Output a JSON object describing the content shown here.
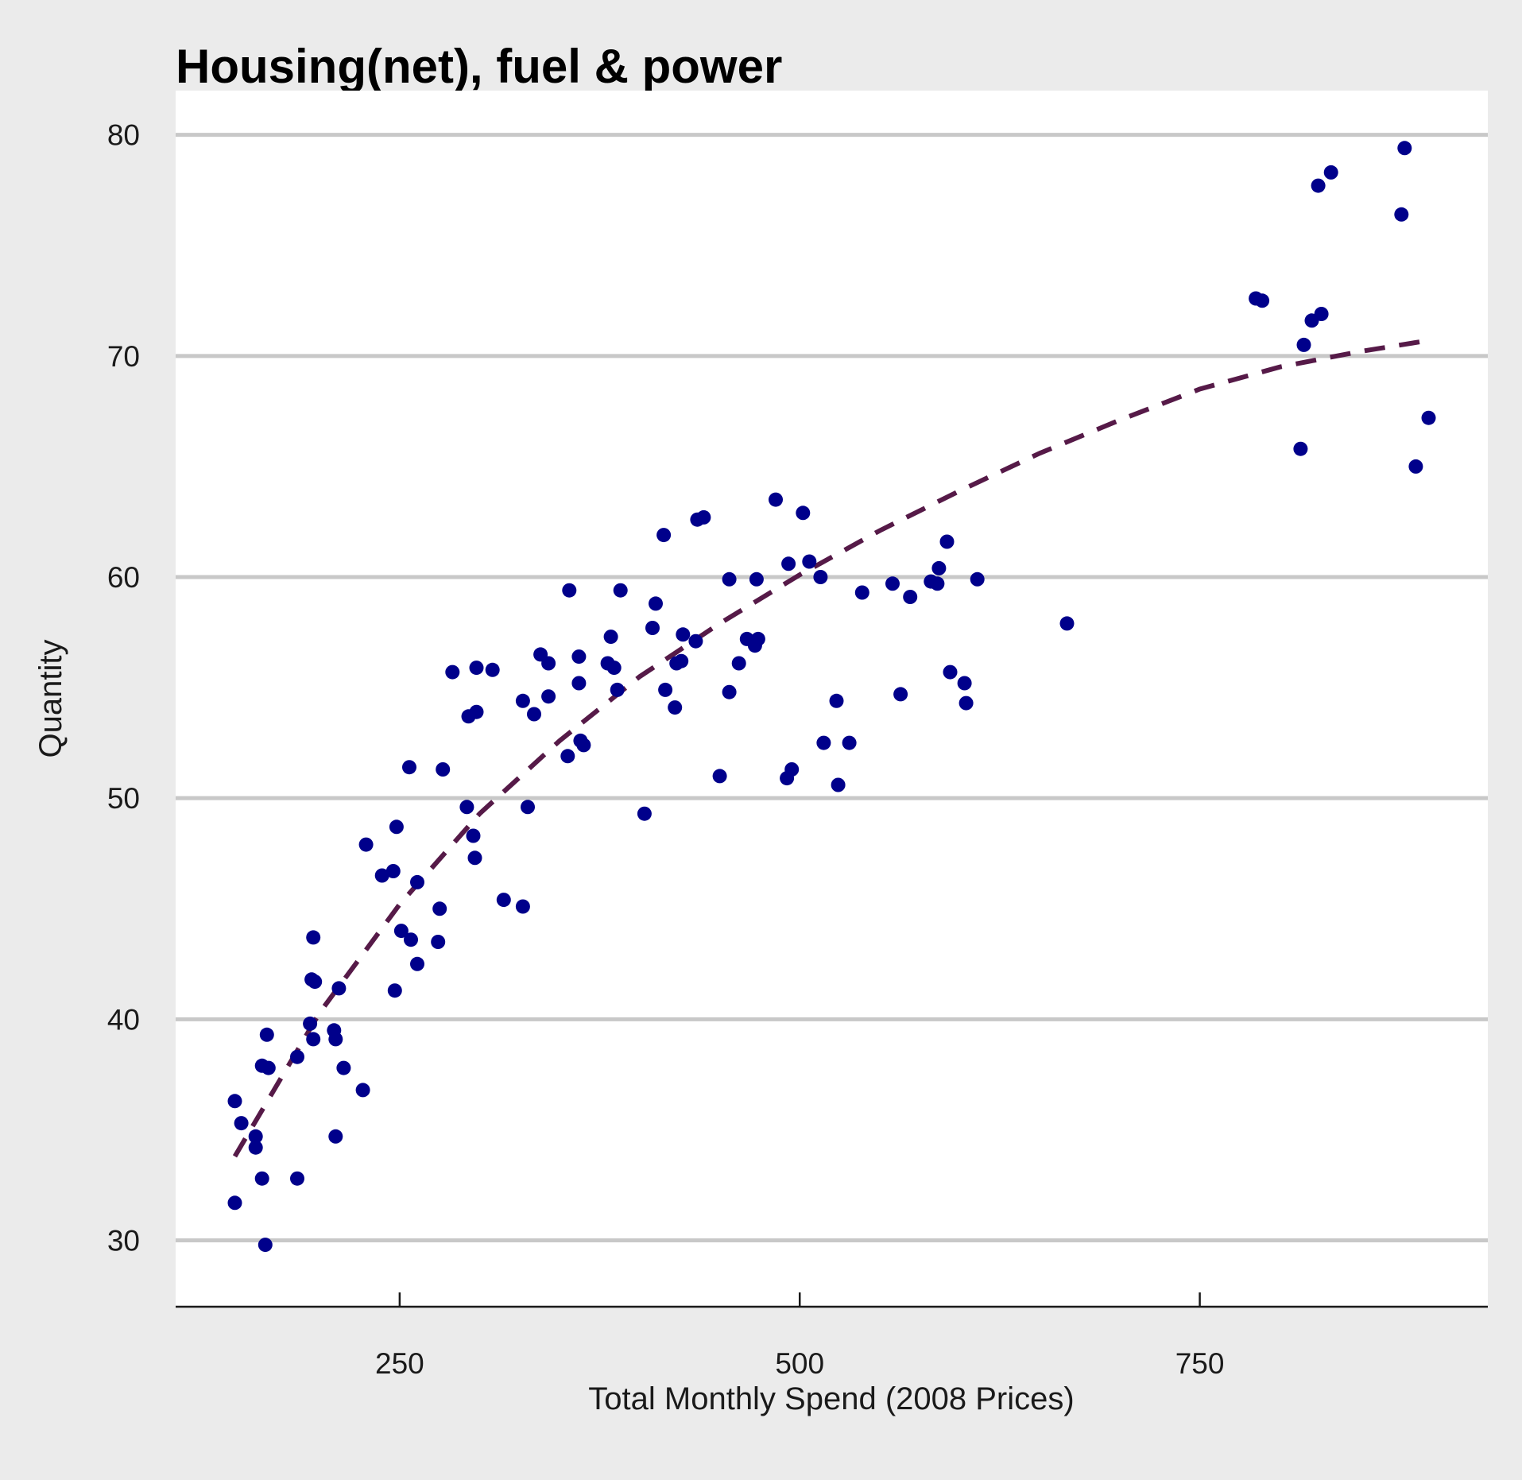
{
  "chart_data": {
    "type": "scatter",
    "title": "Housing(net), fuel & power",
    "xlabel": "Total Monthly Spend (2008 Prices)",
    "ylabel": "Quantity",
    "xlim": [
      110,
      930
    ],
    "ylim": [
      27,
      82
    ],
    "xticks": [
      250,
      500,
      750
    ],
    "xtick_labels": [
      "250",
      "500",
      "750"
    ],
    "yticks": [
      30,
      40,
      50,
      60,
      70,
      80
    ],
    "ytick_labels": [
      "30",
      "40",
      "50",
      "60",
      "70",
      "80"
    ],
    "grid": "horizontal major gridlines",
    "legend": "none",
    "colors": {
      "point": "#00008b",
      "trend": "#561a48",
      "gridline": "#c8c8c8",
      "panel": "#ffffff",
      "background": "#ebebeb"
    },
    "points": [
      {
        "x": 147,
        "y": 36.3
      },
      {
        "x": 147,
        "y": 31.7
      },
      {
        "x": 151,
        "y": 35.3
      },
      {
        "x": 160,
        "y": 34.7
      },
      {
        "x": 160,
        "y": 34.2
      },
      {
        "x": 164,
        "y": 32.8
      },
      {
        "x": 164,
        "y": 37.9
      },
      {
        "x": 166,
        "y": 29.8
      },
      {
        "x": 167,
        "y": 39.3
      },
      {
        "x": 168,
        "y": 37.8
      },
      {
        "x": 186,
        "y": 38.3
      },
      {
        "x": 186,
        "y": 32.8
      },
      {
        "x": 194,
        "y": 39.8
      },
      {
        "x": 195,
        "y": 41.8
      },
      {
        "x": 196,
        "y": 39.1
      },
      {
        "x": 196,
        "y": 43.7
      },
      {
        "x": 197,
        "y": 41.7
      },
      {
        "x": 209,
        "y": 39.5
      },
      {
        "x": 210,
        "y": 39.1
      },
      {
        "x": 210,
        "y": 34.7
      },
      {
        "x": 212,
        "y": 41.4
      },
      {
        "x": 215,
        "y": 37.8
      },
      {
        "x": 227,
        "y": 36.8
      },
      {
        "x": 229,
        "y": 47.9
      },
      {
        "x": 239,
        "y": 46.5
      },
      {
        "x": 246,
        "y": 46.7
      },
      {
        "x": 247,
        "y": 41.3
      },
      {
        "x": 248,
        "y": 48.7
      },
      {
        "x": 251,
        "y": 44.0
      },
      {
        "x": 256,
        "y": 51.4
      },
      {
        "x": 257,
        "y": 43.6
      },
      {
        "x": 261,
        "y": 46.2
      },
      {
        "x": 261,
        "y": 42.5
      },
      {
        "x": 274,
        "y": 43.5
      },
      {
        "x": 275,
        "y": 45.0
      },
      {
        "x": 277,
        "y": 51.3
      },
      {
        "x": 283,
        "y": 55.7
      },
      {
        "x": 292,
        "y": 49.6
      },
      {
        "x": 293,
        "y": 53.7
      },
      {
        "x": 296,
        "y": 48.3
      },
      {
        "x": 297,
        "y": 47.3
      },
      {
        "x": 298,
        "y": 53.9
      },
      {
        "x": 298,
        "y": 55.9
      },
      {
        "x": 308,
        "y": 55.8
      },
      {
        "x": 315,
        "y": 45.4
      },
      {
        "x": 327,
        "y": 54.4
      },
      {
        "x": 327,
        "y": 45.1
      },
      {
        "x": 330,
        "y": 49.6
      },
      {
        "x": 334,
        "y": 53.8
      },
      {
        "x": 338,
        "y": 56.5
      },
      {
        "x": 343,
        "y": 56.1
      },
      {
        "x": 343,
        "y": 54.6
      },
      {
        "x": 355,
        "y": 51.9
      },
      {
        "x": 356,
        "y": 59.4
      },
      {
        "x": 362,
        "y": 56.4
      },
      {
        "x": 362,
        "y": 55.2
      },
      {
        "x": 363,
        "y": 52.6
      },
      {
        "x": 365,
        "y": 52.4
      },
      {
        "x": 380,
        "y": 56.1
      },
      {
        "x": 382,
        "y": 57.3
      },
      {
        "x": 384,
        "y": 55.9
      },
      {
        "x": 386,
        "y": 54.9
      },
      {
        "x": 388,
        "y": 59.4
      },
      {
        "x": 403,
        "y": 49.3
      },
      {
        "x": 408,
        "y": 57.7
      },
      {
        "x": 410,
        "y": 58.8
      },
      {
        "x": 415,
        "y": 61.9
      },
      {
        "x": 416,
        "y": 54.9
      },
      {
        "x": 422,
        "y": 54.1
      },
      {
        "x": 423,
        "y": 56.1
      },
      {
        "x": 426,
        "y": 56.2
      },
      {
        "x": 427,
        "y": 57.4
      },
      {
        "x": 435,
        "y": 57.1
      },
      {
        "x": 436,
        "y": 62.6
      },
      {
        "x": 440,
        "y": 62.7
      },
      {
        "x": 450,
        "y": 51.0
      },
      {
        "x": 456,
        "y": 59.9
      },
      {
        "x": 456,
        "y": 54.8
      },
      {
        "x": 462,
        "y": 56.1
      },
      {
        "x": 467,
        "y": 57.2
      },
      {
        "x": 472,
        "y": 56.9
      },
      {
        "x": 473,
        "y": 59.9
      },
      {
        "x": 474,
        "y": 57.2
      },
      {
        "x": 485,
        "y": 63.5
      },
      {
        "x": 492,
        "y": 50.9
      },
      {
        "x": 493,
        "y": 60.6
      },
      {
        "x": 495,
        "y": 51.3
      },
      {
        "x": 502,
        "y": 62.9
      },
      {
        "x": 506,
        "y": 60.7
      },
      {
        "x": 513,
        "y": 60.0
      },
      {
        "x": 515,
        "y": 52.5
      },
      {
        "x": 523,
        "y": 54.4
      },
      {
        "x": 524,
        "y": 50.6
      },
      {
        "x": 531,
        "y": 52.5
      },
      {
        "x": 539,
        "y": 59.3
      },
      {
        "x": 558,
        "y": 59.7
      },
      {
        "x": 563,
        "y": 54.7
      },
      {
        "x": 569,
        "y": 59.1
      },
      {
        "x": 582,
        "y": 59.8
      },
      {
        "x": 586,
        "y": 59.7
      },
      {
        "x": 587,
        "y": 60.4
      },
      {
        "x": 592,
        "y": 61.6
      },
      {
        "x": 594,
        "y": 55.7
      },
      {
        "x": 603,
        "y": 55.2
      },
      {
        "x": 604,
        "y": 54.3
      },
      {
        "x": 611,
        "y": 59.9
      },
      {
        "x": 667,
        "y": 57.9
      },
      {
        "x": 785,
        "y": 72.6
      },
      {
        "x": 789,
        "y": 72.5
      },
      {
        "x": 813,
        "y": 65.8
      },
      {
        "x": 815,
        "y": 70.5
      },
      {
        "x": 820,
        "y": 71.6
      },
      {
        "x": 824,
        "y": 77.7
      },
      {
        "x": 826,
        "y": 71.9
      },
      {
        "x": 832,
        "y": 78.3
      },
      {
        "x": 876,
        "y": 76.4
      },
      {
        "x": 878,
        "y": 79.4
      },
      {
        "x": 885,
        "y": 65.0
      },
      {
        "x": 893,
        "y": 67.2
      }
    ],
    "trend_line": {
      "style": "dashed",
      "x": [
        147,
        200,
        250,
        300,
        350,
        400,
        450,
        500,
        550,
        600,
        650,
        700,
        750,
        800,
        850,
        893
      ],
      "y": [
        33.8,
        40.3,
        45.2,
        49.3,
        52.6,
        55.5,
        57.9,
        60.1,
        62.1,
        63.9,
        65.6,
        67.1,
        68.5,
        69.5,
        70.2,
        70.7
      ]
    }
  }
}
